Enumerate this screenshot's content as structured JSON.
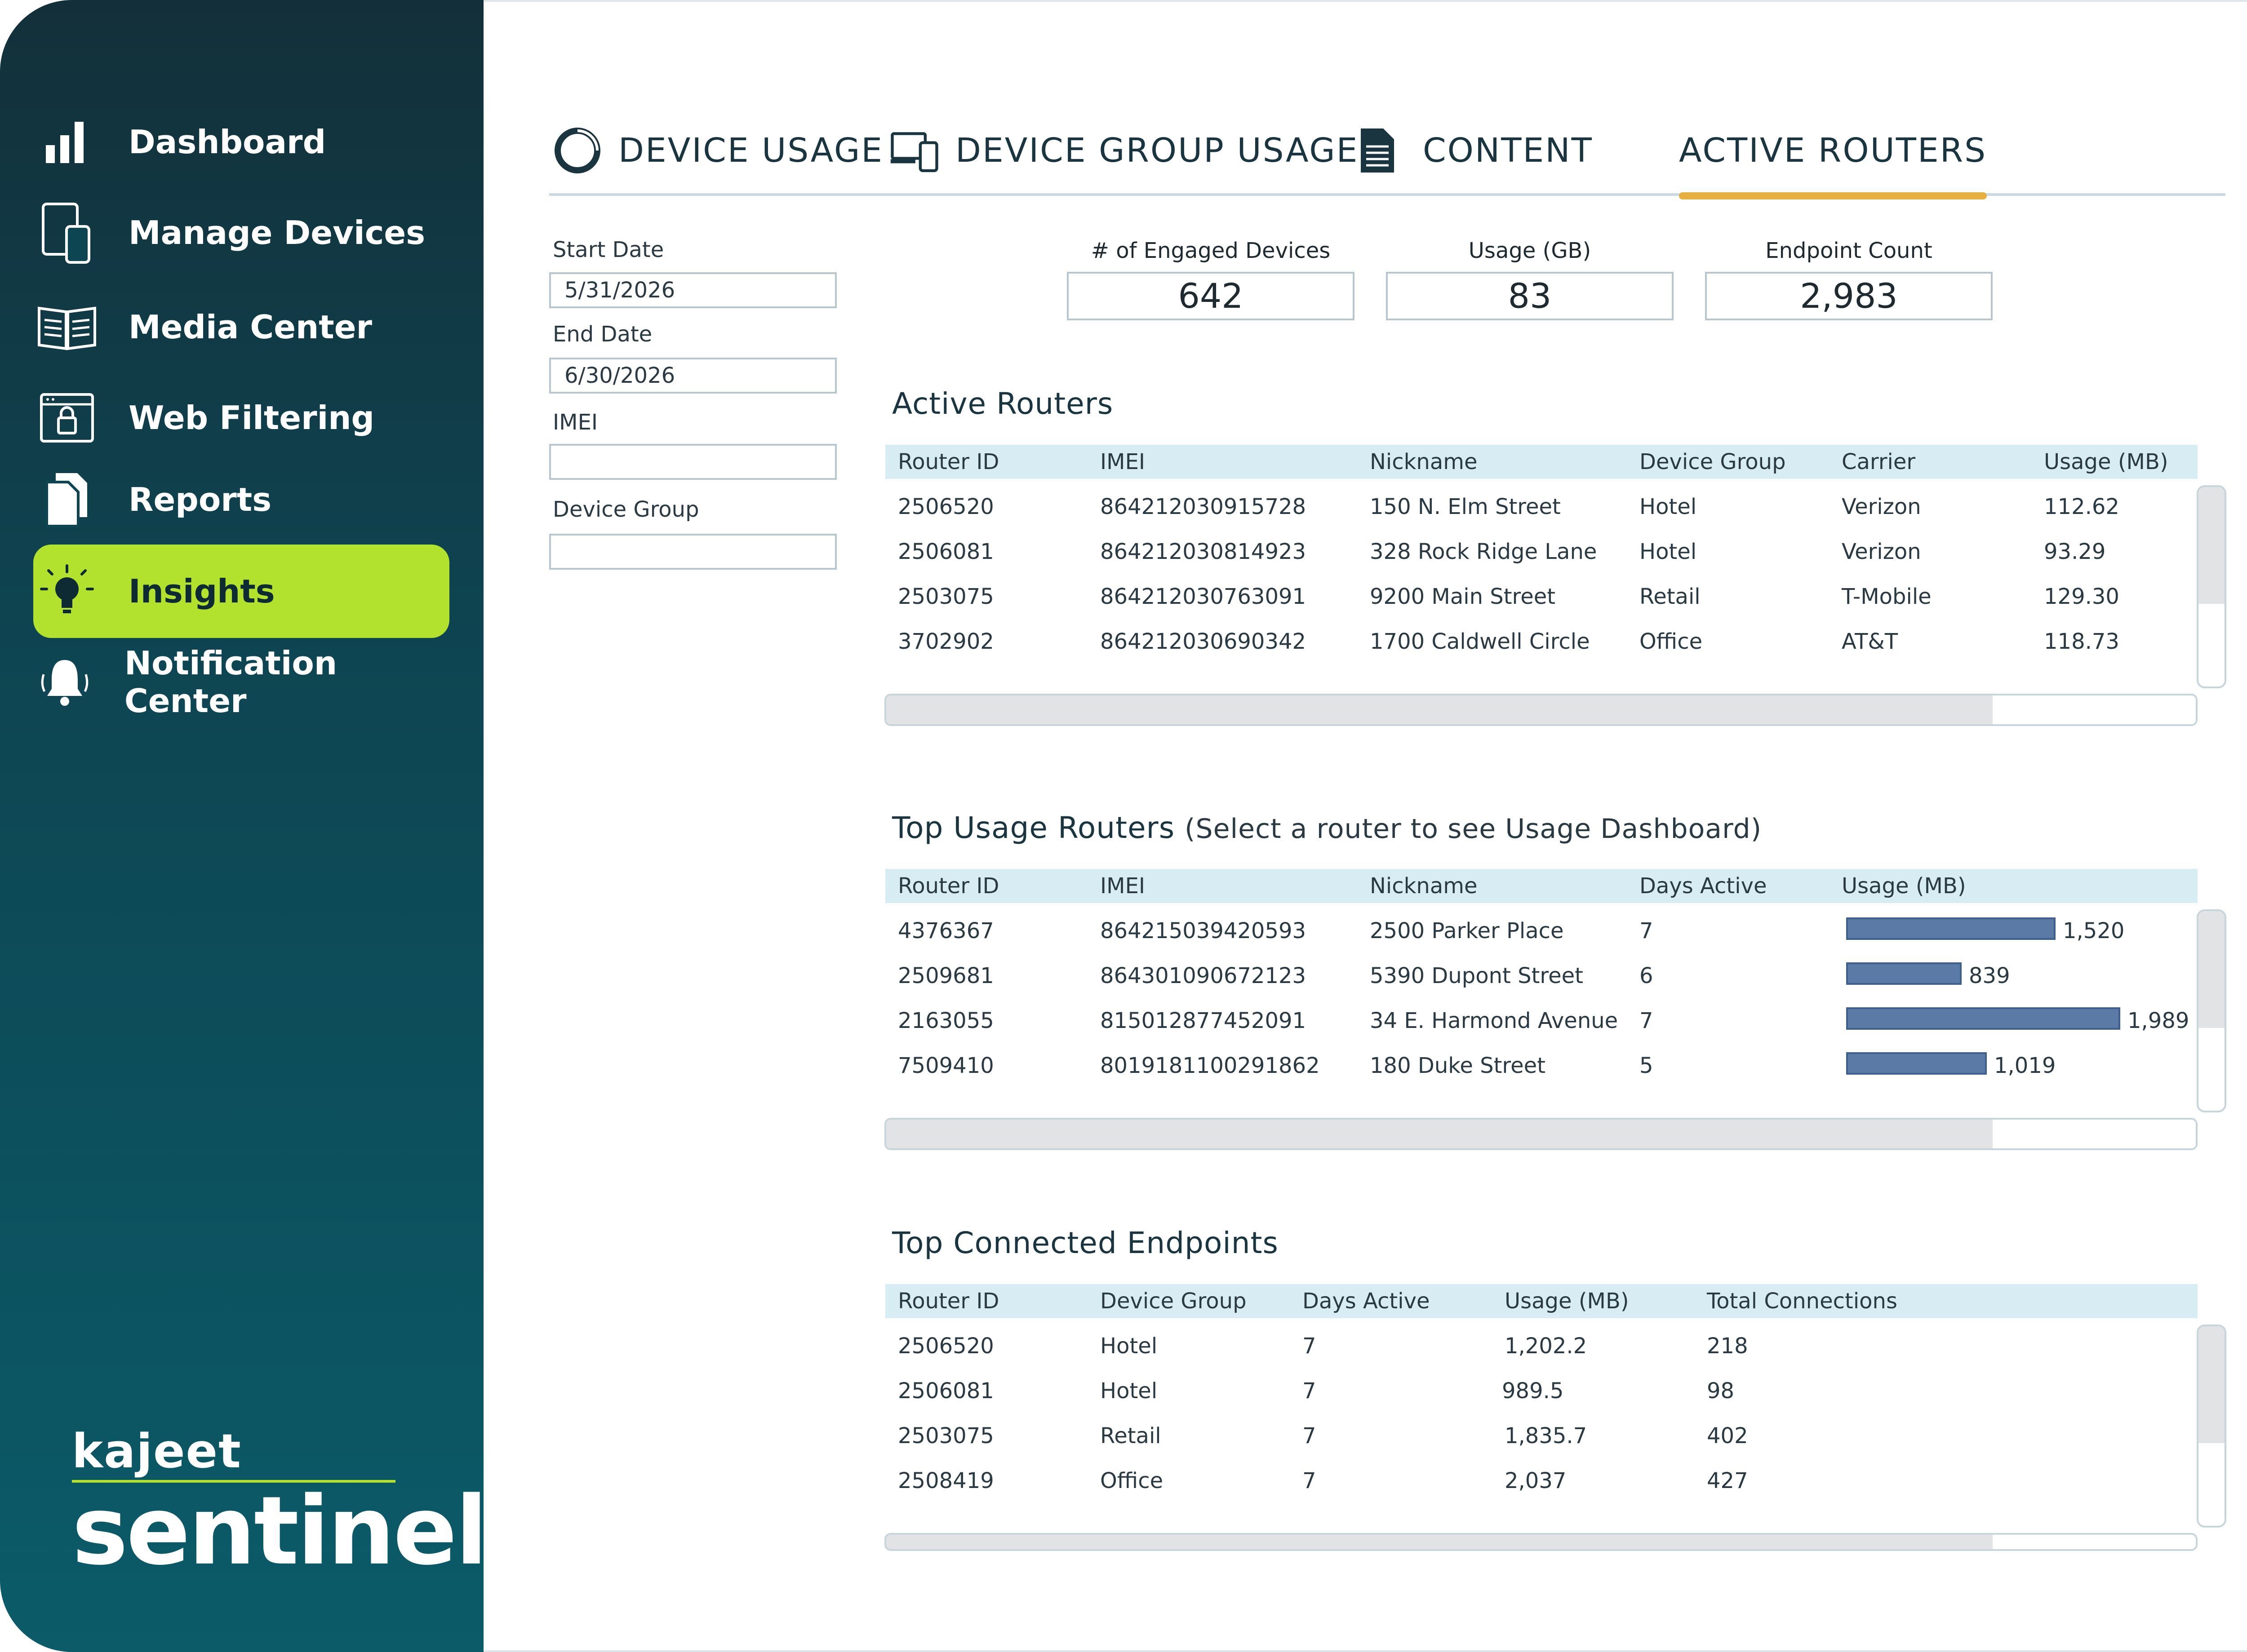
{
  "sidebar": {
    "items": [
      {
        "label": "Dashboard",
        "icon": "bar-chart-icon"
      },
      {
        "label": "Manage Devices",
        "icon": "devices-icon"
      },
      {
        "label": "Media Center",
        "icon": "book-icon"
      },
      {
        "label": "Web Filtering",
        "icon": "lock-window-icon"
      },
      {
        "label": "Reports",
        "icon": "documents-icon"
      },
      {
        "label": "Insights",
        "icon": "lightbulb-icon",
        "active": true
      },
      {
        "label": "Notification Center",
        "icon": "bell-icon"
      }
    ],
    "logo": {
      "top": "kajeet",
      "bottom": "sentinel",
      "mark": "®"
    }
  },
  "tabs": [
    {
      "label": "DEVICE USAGE",
      "icon": "ring-icon"
    },
    {
      "label": "DEVICE GROUP USAGE",
      "icon": "device-group-icon"
    },
    {
      "label": "CONTENT",
      "icon": "document-icon"
    },
    {
      "label": "ACTIVE ROUTERS",
      "active": true
    }
  ],
  "filters": {
    "start_label": "Start Date",
    "start_value": "5/31/2026",
    "end_label": "End Date",
    "end_value": "6/30/2026",
    "imei_label": "IMEI",
    "imei_value": "",
    "group_label": "Device Group",
    "group_value": ""
  },
  "stats": [
    {
      "label": "#   of Engaged Devices",
      "value": "642"
    },
    {
      "label": "Usage (GB)",
      "value": "83"
    },
    {
      "label": "Endpoint Count",
      "value": "2,983"
    }
  ],
  "active_routers": {
    "title": "Active Routers",
    "columns": [
      "Router ID",
      "IMEI",
      "Nickname",
      "Device Group",
      "Carrier",
      "Usage (MB)"
    ],
    "rows": [
      [
        "2506520",
        "864212030915728",
        "150 N. Elm Street",
        "Hotel",
        "Verizon",
        "112.62"
      ],
      [
        "2506081",
        "864212030814923",
        "328 Rock Ridge Lane",
        "Hotel",
        "Verizon",
        "93.29"
      ],
      [
        "2503075",
        "864212030763091",
        "9200 Main Street",
        "Retail",
        "T-Mobile",
        "129.30"
      ],
      [
        "3702902",
        "864212030690342",
        "1700 Caldwell Circle",
        "Office",
        "AT&T",
        "118.73"
      ]
    ]
  },
  "top_usage": {
    "title": "Top Usage Routers",
    "subtitle": "(Select a router to see Usage Dashboard)",
    "columns": [
      "Router ID",
      "IMEI",
      "Nickname",
      "Days Active",
      "Usage (MB)"
    ],
    "rows": [
      {
        "id": "4376367",
        "imei": "864215039420593",
        "nickname": "2500 Parker Place",
        "days": "7",
        "usage_label": "1,520",
        "usage": 1520
      },
      {
        "id": "2509681",
        "imei": "864301090672123",
        "nickname": "5390 Dupont Street",
        "days": "6",
        "usage_label": "839",
        "usage": 839
      },
      {
        "id": "2163055",
        "imei": "815012877452091",
        "nickname": "34 E. Harmond Avenue",
        "days": "7",
        "usage_label": "1,989",
        "usage": 1989
      },
      {
        "id": "7509410",
        "imei": "8019181100291862",
        "nickname": "180 Duke Street",
        "days": "5",
        "usage_label": "1,019",
        "usage": 1019
      }
    ]
  },
  "top_endpoints": {
    "title": "Top Connected Endpoints",
    "columns": [
      "Router ID",
      "Device Group",
      "Days Active",
      "Usage (MB)",
      "Total Connections"
    ],
    "rows": [
      [
        "2506520",
        "Hotel",
        "7",
        "1,202.2",
        "218"
      ],
      [
        "2506081",
        "Hotel",
        "7",
        "989.5",
        "98"
      ],
      [
        "2503075",
        "Retail",
        "7",
        "1,835.7",
        "402"
      ],
      [
        "2508419",
        "Office",
        "7",
        "2,037",
        "427"
      ]
    ]
  },
  "colors": {
    "accent": "#b3e22e",
    "tab_indicator": "#e6b041",
    "bar": "#5b7ba6",
    "header_bg": "#d8ecf3"
  }
}
